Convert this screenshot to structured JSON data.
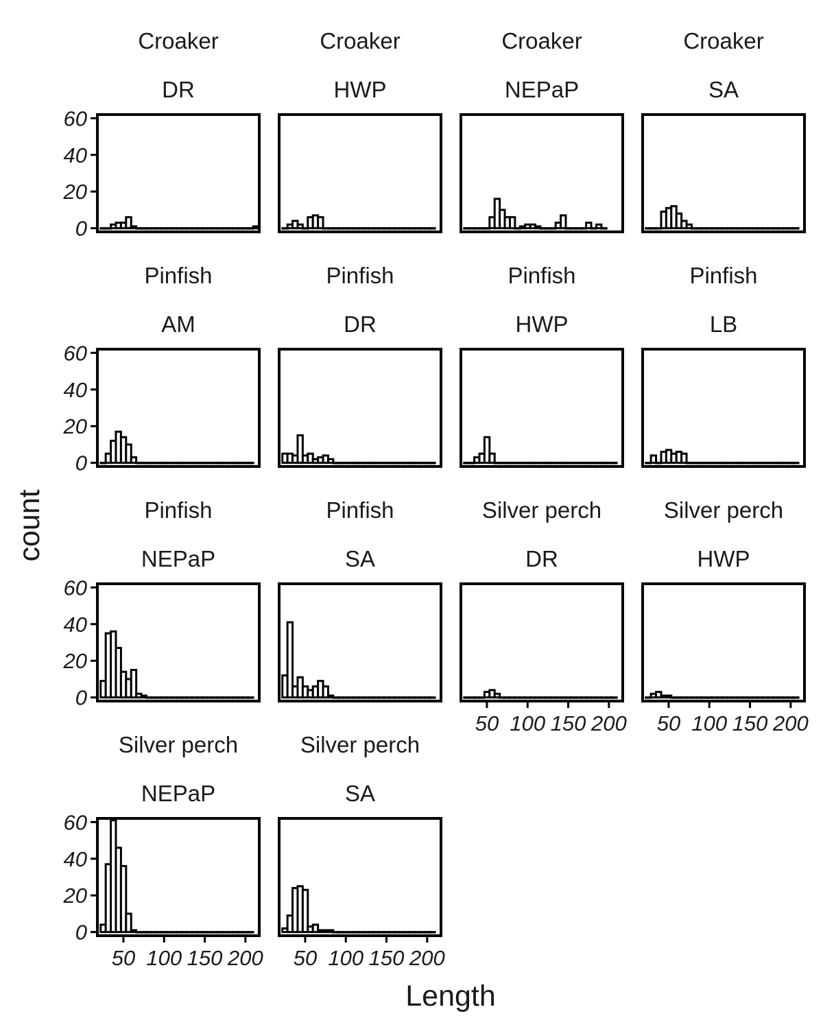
{
  "chart_data": {
    "type": "bar",
    "xlabel": "Length",
    "ylabel": "count",
    "xlim": [
      18,
      217
    ],
    "ylim": [
      -2,
      62
    ],
    "x_ticks": [
      50,
      100,
      150,
      200
    ],
    "x_tick_labels": [
      "50",
      "100",
      "150",
      "200"
    ],
    "y_ticks": [
      0,
      20,
      40,
      60
    ],
    "y_tick_labels": [
      "0",
      "20",
      "40",
      "60"
    ],
    "bin_start": 22,
    "bin_width": 6.25,
    "grid": false,
    "legend": "none",
    "panels": [
      {
        "species": "Croaker",
        "site": "DR",
        "counts": [
          0,
          0,
          2,
          3,
          3,
          6,
          1,
          0,
          0,
          0,
          0,
          0,
          0,
          0,
          0,
          0,
          0,
          0,
          0,
          0,
          0,
          0,
          0,
          0,
          0,
          0,
          0,
          0,
          0,
          0,
          1
        ]
      },
      {
        "species": "Croaker",
        "site": "HWP",
        "counts": [
          0,
          2,
          4,
          2,
          0,
          6,
          7,
          6,
          0,
          0,
          0,
          0,
          0,
          0,
          0,
          0,
          0,
          0,
          0,
          0,
          0,
          0,
          0,
          0,
          0,
          0,
          0,
          0,
          0,
          0
        ]
      },
      {
        "species": "Croaker",
        "site": "NEPaP",
        "counts": [
          0,
          0,
          0,
          0,
          0,
          6,
          16,
          10,
          6,
          6,
          0,
          1,
          2,
          2,
          1,
          0,
          0,
          0,
          3,
          7,
          0,
          0,
          0,
          0,
          3,
          0,
          2,
          0
        ]
      },
      {
        "species": "Croaker",
        "site": "SA",
        "counts": [
          0,
          0,
          0,
          9,
          11,
          12,
          8,
          4,
          2,
          0,
          0,
          0,
          0,
          0,
          0,
          0,
          0,
          0,
          0,
          0,
          0,
          0,
          0,
          0,
          0,
          0,
          0,
          0,
          0,
          0
        ]
      },
      {
        "species": "Pinfish",
        "site": "AM",
        "counts": [
          0,
          5,
          12,
          17,
          14,
          10,
          3,
          0,
          0,
          0,
          0,
          0,
          0,
          0,
          0,
          0,
          0,
          0,
          0,
          0,
          0,
          0,
          0,
          0,
          0,
          0,
          0,
          0,
          0,
          0
        ]
      },
      {
        "species": "Pinfish",
        "site": "DR",
        "counts": [
          5,
          5,
          4,
          15,
          4,
          5,
          2,
          3,
          4,
          2,
          0,
          0,
          0,
          0,
          0,
          0,
          0,
          0,
          0,
          0,
          0,
          0,
          0,
          0,
          0,
          0,
          0,
          0,
          0,
          0
        ]
      },
      {
        "species": "Pinfish",
        "site": "HWP",
        "counts": [
          0,
          0,
          3,
          5,
          14,
          5,
          0,
          0,
          0,
          0,
          0,
          0,
          0,
          0,
          0,
          0,
          0,
          0,
          0,
          0,
          0,
          0,
          0,
          0,
          0,
          0,
          0,
          0,
          0,
          0
        ]
      },
      {
        "species": "Pinfish",
        "site": "LB",
        "counts": [
          0,
          4,
          0,
          6,
          7,
          5,
          6,
          5,
          0,
          0,
          0,
          0,
          0,
          0,
          0,
          0,
          0,
          0,
          0,
          0,
          0,
          0,
          0,
          0,
          0,
          0,
          0,
          0,
          0,
          0
        ]
      },
      {
        "species": "Pinfish",
        "site": "NEPaP",
        "counts": [
          9,
          35,
          36,
          27,
          14,
          10,
          15,
          2,
          1,
          0,
          0,
          0,
          0,
          0,
          0,
          0,
          0,
          0,
          0,
          0,
          0,
          0,
          0,
          0,
          0,
          0,
          0,
          0,
          0,
          0
        ]
      },
      {
        "species": "Pinfish",
        "site": "SA",
        "counts": [
          12,
          41,
          6,
          11,
          6,
          4,
          6,
          9,
          6,
          1,
          0,
          0,
          0,
          0,
          0,
          0,
          0,
          0,
          0,
          0,
          0,
          0,
          0,
          0,
          0,
          0,
          0,
          0,
          0,
          0
        ]
      },
      {
        "species": "Silver perch",
        "site": "DR",
        "counts": [
          0,
          0,
          0,
          0,
          3,
          4,
          2,
          0,
          0,
          0,
          0,
          0,
          0,
          0,
          0,
          0,
          0,
          0,
          0,
          0,
          0,
          0,
          0,
          0,
          0,
          0,
          0,
          0,
          0,
          0
        ]
      },
      {
        "species": "Silver perch",
        "site": "HWP",
        "counts": [
          0,
          2,
          3,
          1,
          1,
          0,
          0,
          0,
          0,
          0,
          0,
          0,
          0,
          0,
          0,
          0,
          0,
          0,
          0,
          0,
          0,
          0,
          0,
          0,
          0,
          0,
          0,
          0,
          0,
          0
        ]
      },
      {
        "species": "Silver perch",
        "site": "NEPaP",
        "counts": [
          4,
          37,
          61,
          46,
          36,
          10,
          1,
          0,
          0,
          0,
          0,
          0,
          0,
          0,
          0,
          0,
          0,
          0,
          0,
          0,
          0,
          0,
          0,
          0,
          0,
          0,
          0,
          0,
          0,
          0
        ]
      },
      {
        "species": "Silver perch",
        "site": "SA",
        "counts": [
          2,
          9,
          24,
          25,
          23,
          3,
          4,
          1,
          1,
          1,
          0,
          0,
          0,
          0,
          0,
          0,
          0,
          0,
          0,
          0,
          0,
          0,
          0,
          0,
          0,
          0,
          0,
          0,
          0,
          0
        ]
      }
    ]
  }
}
